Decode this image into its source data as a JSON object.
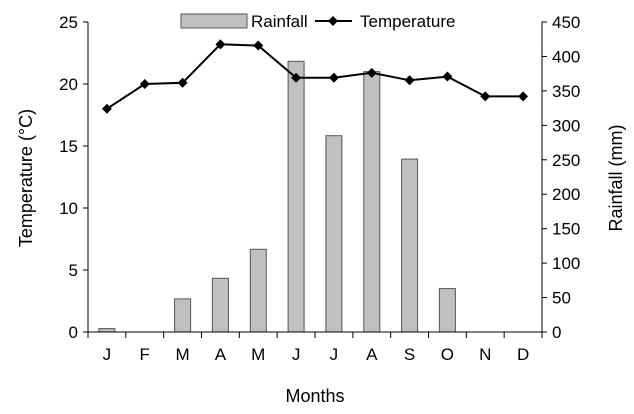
{
  "chart_data": {
    "type": "bar+line",
    "categories": [
      "J",
      "F",
      "M",
      "A",
      "M",
      "J",
      "J",
      "A",
      "S",
      "O",
      "N",
      "D"
    ],
    "series": [
      {
        "name": "Rainfall",
        "type": "bar",
        "axis": "right",
        "color": "#c0c0c0",
        "values": [
          5,
          0,
          48,
          78,
          120,
          393,
          285,
          378,
          251,
          63,
          0,
          0
        ]
      },
      {
        "name": "Temperature",
        "type": "line",
        "axis": "left",
        "color": "#000000",
        "marker": "diamond",
        "values": [
          18.0,
          20.0,
          20.1,
          23.2,
          23.1,
          20.5,
          20.5,
          20.9,
          20.3,
          20.6,
          19.0,
          19.0
        ]
      }
    ],
    "xlabel": "Months",
    "ylabel_left": "Temperature (°C)",
    "ylabel_right": "Rainfall (mm)",
    "ylim_left": [
      0,
      25
    ],
    "yticks_left": [
      "0",
      "5",
      "10",
      "15",
      "20",
      "25"
    ],
    "ylim_right": [
      0,
      450
    ],
    "yticks_right": [
      "0",
      "50",
      "100",
      "150",
      "200",
      "250",
      "300",
      "350",
      "400",
      "450"
    ],
    "grid": false,
    "legend_position": "top"
  }
}
